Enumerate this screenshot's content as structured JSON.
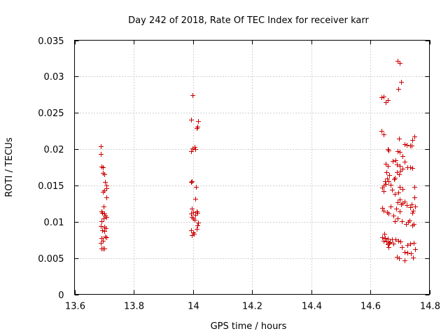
{
  "chart_data": {
    "type": "scatter",
    "title": "Day 242 of 2018, Rate Of TEC Index for receiver karr",
    "xlabel": "GPS time / hours",
    "ylabel": "ROTI / TECUs",
    "xlim": [
      13.6,
      14.8
    ],
    "ylim": [
      0,
      0.035
    ],
    "xticks": [
      13.6,
      13.8,
      14.0,
      14.2,
      14.4,
      14.6,
      14.8
    ],
    "xtick_labels": [
      "13.6",
      "13.8",
      "14",
      "14.2",
      "14.4",
      "14.6",
      "14.8"
    ],
    "yticks": [
      0,
      0.005,
      0.01,
      0.015,
      0.02,
      0.025,
      0.03,
      0.035
    ],
    "ytick_labels": [
      "0",
      "0.005",
      "0.01",
      "0.015",
      "0.02",
      "0.025",
      "0.03",
      "0.035"
    ],
    "grid": true,
    "marker": "+",
    "color": "#cc0000",
    "series": [
      {
        "name": "ROTI",
        "points": [
          [
            13.688,
            0.0204
          ],
          [
            13.689,
            0.0193
          ],
          [
            13.69,
            0.0176
          ],
          [
            13.696,
            0.0175
          ],
          [
            13.697,
            0.0167
          ],
          [
            13.701,
            0.0165
          ],
          [
            13.703,
            0.0155
          ],
          [
            13.707,
            0.015
          ],
          [
            13.7,
            0.0143
          ],
          [
            13.696,
            0.0141
          ],
          [
            13.708,
            0.0146
          ],
          [
            13.707,
            0.0134
          ],
          [
            13.698,
            0.0121
          ],
          [
            13.69,
            0.0114
          ],
          [
            13.694,
            0.0112
          ],
          [
            13.7,
            0.0111
          ],
          [
            13.704,
            0.0108
          ],
          [
            13.708,
            0.0107
          ],
          [
            13.698,
            0.0105
          ],
          [
            13.69,
            0.0101
          ],
          [
            13.689,
            0.0094
          ],
          [
            13.7,
            0.0093
          ],
          [
            13.705,
            0.0091
          ],
          [
            13.694,
            0.0088
          ],
          [
            13.7,
            0.0087
          ],
          [
            13.704,
            0.008
          ],
          [
            13.708,
            0.0079
          ],
          [
            13.69,
            0.0078
          ],
          [
            13.695,
            0.0074
          ],
          [
            13.689,
            0.0071
          ],
          [
            13.69,
            0.0063
          ],
          [
            13.696,
            0.0063
          ],
          [
            13.701,
            0.0063
          ],
          [
            13.998,
            0.0274
          ],
          [
            13.995,
            0.0241
          ],
          [
            14.018,
            0.0239
          ],
          [
            14.016,
            0.0231
          ],
          [
            14.012,
            0.0229
          ],
          [
            14.005,
            0.0203
          ],
          [
            13.999,
            0.0201
          ],
          [
            14.008,
            0.02
          ],
          [
            13.995,
            0.0197
          ],
          [
            13.996,
            0.0156
          ],
          [
            13.993,
            0.0155
          ],
          [
            14.01,
            0.0148
          ],
          [
            14.008,
            0.0132
          ],
          [
            13.997,
            0.0118
          ],
          [
            14.012,
            0.0114
          ],
          [
            14.002,
            0.0113
          ],
          [
            14.016,
            0.0112
          ],
          [
            13.994,
            0.0111
          ],
          [
            14.008,
            0.0109
          ],
          [
            13.996,
            0.0107
          ],
          [
            14.0,
            0.0105
          ],
          [
            14.005,
            0.0103
          ],
          [
            14.018,
            0.0099
          ],
          [
            14.016,
            0.0095
          ],
          [
            14.014,
            0.009
          ],
          [
            13.993,
            0.0088
          ],
          [
            14.0,
            0.0085
          ],
          [
            14.004,
            0.0083
          ],
          [
            13.996,
            0.0081
          ],
          [
            14.692,
            0.0322
          ],
          [
            14.7,
            0.0319
          ],
          [
            14.704,
            0.0293
          ],
          [
            14.694,
            0.0283
          ],
          [
            14.638,
            0.0271
          ],
          [
            14.646,
            0.0272
          ],
          [
            14.66,
            0.0268
          ],
          [
            14.652,
            0.0265
          ],
          [
            14.638,
            0.0225
          ],
          [
            14.646,
            0.022
          ],
          [
            14.696,
            0.0215
          ],
          [
            14.748,
            0.0217
          ],
          [
            14.742,
            0.0213
          ],
          [
            14.716,
            0.0207
          ],
          [
            14.724,
            0.0206
          ],
          [
            14.734,
            0.0205
          ],
          [
            14.74,
            0.0205
          ],
          [
            14.658,
            0.02
          ],
          [
            14.662,
            0.0198
          ],
          [
            14.692,
            0.0197
          ],
          [
            14.7,
            0.0196
          ],
          [
            14.71,
            0.019
          ],
          [
            14.686,
            0.0185
          ],
          [
            14.676,
            0.0184
          ],
          [
            14.716,
            0.0183
          ],
          [
            14.652,
            0.018
          ],
          [
            14.69,
            0.0179
          ],
          [
            14.7,
            0.0177
          ],
          [
            14.66,
            0.0177
          ],
          [
            14.726,
            0.0175
          ],
          [
            14.734,
            0.0175
          ],
          [
            14.742,
            0.0174
          ],
          [
            14.708,
            0.0173
          ],
          [
            14.702,
            0.017
          ],
          [
            14.69,
            0.0168
          ],
          [
            14.654,
            0.0168
          ],
          [
            14.696,
            0.0165
          ],
          [
            14.664,
            0.0164
          ],
          [
            14.684,
            0.0161
          ],
          [
            14.656,
            0.016
          ],
          [
            14.68,
            0.0159
          ],
          [
            14.65,
            0.0156
          ],
          [
            14.662,
            0.0156
          ],
          [
            14.652,
            0.0152
          ],
          [
            14.668,
            0.0151
          ],
          [
            14.646,
            0.015
          ],
          [
            14.748,
            0.0148
          ],
          [
            14.7,
            0.0148
          ],
          [
            14.64,
            0.0147
          ],
          [
            14.71,
            0.0145
          ],
          [
            14.674,
            0.0144
          ],
          [
            14.644,
            0.0142
          ],
          [
            14.694,
            0.014
          ],
          [
            14.682,
            0.0138
          ],
          [
            14.75,
            0.0134
          ],
          [
            14.7,
            0.0131
          ],
          [
            14.716,
            0.0128
          ],
          [
            14.692,
            0.0127
          ],
          [
            14.71,
            0.0126
          ],
          [
            14.704,
            0.0124
          ],
          [
            14.724,
            0.0123
          ],
          [
            14.74,
            0.0124
          ],
          [
            14.752,
            0.0121
          ],
          [
            14.736,
            0.012
          ],
          [
            14.668,
            0.0121
          ],
          [
            14.64,
            0.0119
          ],
          [
            14.688,
            0.0118
          ],
          [
            14.644,
            0.0115
          ],
          [
            14.744,
            0.0115
          ],
          [
            14.7,
            0.0114
          ],
          [
            14.656,
            0.0113
          ],
          [
            14.742,
            0.0112
          ],
          [
            14.662,
            0.0111
          ],
          [
            14.678,
            0.0108
          ],
          [
            14.692,
            0.0105
          ],
          [
            14.706,
            0.0101
          ],
          [
            14.684,
            0.0101
          ],
          [
            14.732,
            0.0102
          ],
          [
            14.728,
            0.01
          ],
          [
            14.72,
            0.0097
          ],
          [
            14.746,
            0.0097
          ],
          [
            14.742,
            0.0095
          ],
          [
            14.648,
            0.0083
          ],
          [
            14.64,
            0.0079
          ],
          [
            14.65,
            0.0078
          ],
          [
            14.66,
            0.0077
          ],
          [
            14.674,
            0.0076
          ],
          [
            14.686,
            0.0076
          ],
          [
            14.644,
            0.0074
          ],
          [
            14.694,
            0.0074
          ],
          [
            14.654,
            0.0073
          ],
          [
            14.702,
            0.0073
          ],
          [
            14.666,
            0.0072
          ],
          [
            14.664,
            0.0071
          ],
          [
            14.746,
            0.0071
          ],
          [
            14.736,
            0.007
          ],
          [
            14.678,
            0.007
          ],
          [
            14.658,
            0.0069
          ],
          [
            14.726,
            0.0068
          ],
          [
            14.662,
            0.0065
          ],
          [
            14.706,
            0.0065
          ],
          [
            14.752,
            0.0062
          ],
          [
            14.716,
            0.0058
          ],
          [
            14.726,
            0.0057
          ],
          [
            14.738,
            0.0056
          ],
          [
            14.69,
            0.0052
          ],
          [
            14.744,
            0.0051
          ],
          [
            14.698,
            0.005
          ],
          [
            14.716,
            0.0047
          ]
        ]
      }
    ]
  }
}
